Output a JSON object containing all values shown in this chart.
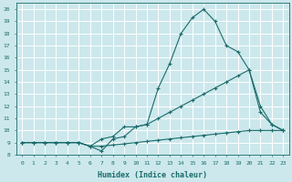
{
  "xlabel": "Humidex (Indice chaleur)",
  "bg_color": "#cce8ec",
  "grid_color": "#ffffff",
  "line_color": "#1a6b6b",
  "xlim": [
    -0.5,
    23.5
  ],
  "ylim": [
    8,
    20.5
  ],
  "xticks": [
    0,
    1,
    2,
    3,
    4,
    5,
    6,
    7,
    8,
    9,
    10,
    11,
    12,
    13,
    14,
    15,
    16,
    17,
    18,
    19,
    20,
    21,
    22,
    23
  ],
  "yticks": [
    8,
    9,
    10,
    11,
    12,
    13,
    14,
    15,
    16,
    17,
    18,
    19,
    20
  ],
  "series1": {
    "x": [
      0,
      1,
      2,
      3,
      4,
      5,
      6,
      7,
      8,
      9,
      10,
      11,
      12,
      13,
      14,
      15,
      16,
      17,
      18,
      19,
      20,
      21,
      22,
      23
    ],
    "y": [
      9,
      9,
      9,
      9,
      9,
      9,
      8.7,
      8.7,
      8.8,
      8.9,
      9.0,
      9.1,
      9.2,
      9.3,
      9.4,
      9.5,
      9.6,
      9.7,
      9.8,
      9.9,
      10.0,
      10.0,
      10.0,
      10.0
    ]
  },
  "series2": {
    "x": [
      0,
      1,
      2,
      3,
      4,
      5,
      6,
      7,
      8,
      9,
      10,
      11,
      12,
      13,
      14,
      15,
      16,
      17,
      18,
      19,
      20,
      21,
      22,
      23
    ],
    "y": [
      9,
      9,
      9,
      9,
      9,
      9,
      8.7,
      9.3,
      9.5,
      10.3,
      10.3,
      10.5,
      11.0,
      11.5,
      12.0,
      12.5,
      13.0,
      13.5,
      14.0,
      14.5,
      15.0,
      11.5,
      10.5,
      10.0
    ]
  },
  "series3": {
    "x": [
      0,
      1,
      2,
      3,
      4,
      5,
      6,
      7,
      8,
      9,
      10,
      11,
      12,
      13,
      14,
      15,
      16,
      17,
      18,
      19,
      20,
      21,
      22,
      23
    ],
    "y": [
      9,
      9,
      9,
      9,
      9,
      9,
      8.7,
      8.3,
      9.3,
      9.5,
      10.3,
      10.5,
      13.5,
      15.5,
      18.0,
      19.3,
      20.0,
      19.0,
      17.0,
      16.5,
      15.0,
      12.0,
      10.5,
      10.0
    ]
  }
}
